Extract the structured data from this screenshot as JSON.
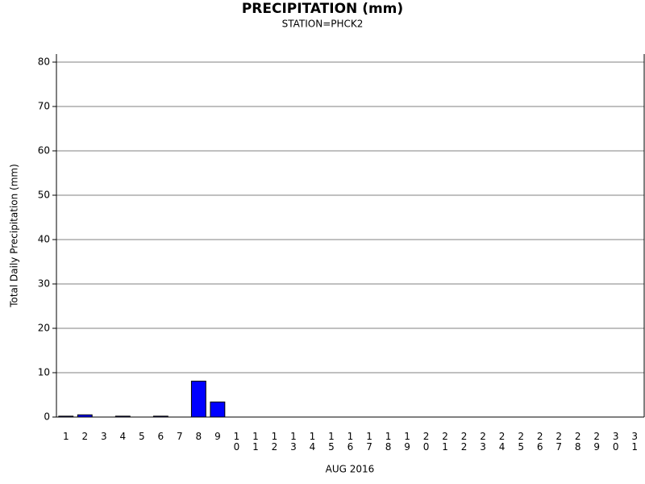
{
  "chart_data": {
    "type": "bar",
    "title": "PRECIPITATION (mm)",
    "subtitle": "STATION=PHCK2",
    "x_label": "AUG 2016",
    "y_label": "Total Daily Precipitation (mm)",
    "categories": [
      "1",
      "2",
      "3",
      "4",
      "5",
      "6",
      "7",
      "8",
      "9",
      "10",
      "11",
      "12",
      "13",
      "14",
      "15",
      "16",
      "17",
      "18",
      "19",
      "20",
      "21",
      "22",
      "23",
      "24",
      "25",
      "26",
      "27",
      "28",
      "29",
      "30",
      "31"
    ],
    "values": [
      0.2,
      0.5,
      0,
      0.2,
      0,
      0.2,
      0,
      8.1,
      3.4,
      0,
      0,
      0,
      0,
      0,
      0,
      0,
      0,
      0,
      0,
      0,
      0,
      0,
      0,
      0,
      0,
      0,
      0,
      0,
      0,
      0,
      0
    ],
    "color": "#0000ff",
    "ylim": [
      0,
      80
    ],
    "yticks": [
      0,
      10,
      20,
      30,
      40,
      50,
      60,
      70,
      80
    ],
    "grid": true
  }
}
